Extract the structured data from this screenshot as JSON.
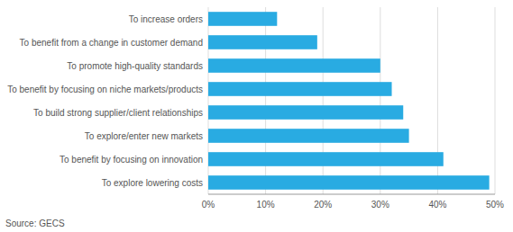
{
  "chart_data": {
    "type": "bar",
    "orientation": "horizontal",
    "categories": [
      "To explore lowering costs",
      "To benefit by focusing on innovation",
      "To explore/enter new markets",
      "To build strong supplier/client relationships",
      "To benefit by focusing on niche markets/products",
      "To promote high-quality standards",
      "To benefit from a change in customer demand",
      "To increase orders"
    ],
    "values": [
      0.49,
      0.41,
      0.35,
      0.34,
      0.32,
      0.3,
      0.19,
      0.12
    ],
    "color": "#29ABE2",
    "xlim": [
      0,
      0.5
    ],
    "xticks": [
      {
        "value": 0,
        "label": "0%"
      },
      {
        "value": 0.1,
        "label": "10%"
      },
      {
        "value": 0.2,
        "label": "20%"
      },
      {
        "value": 0.3,
        "label": "30%"
      },
      {
        "value": 0.4,
        "label": "40%"
      },
      {
        "value": 0.5,
        "label": "50%"
      }
    ],
    "grid": true,
    "annotations": [
      "Source: GECS"
    ]
  }
}
